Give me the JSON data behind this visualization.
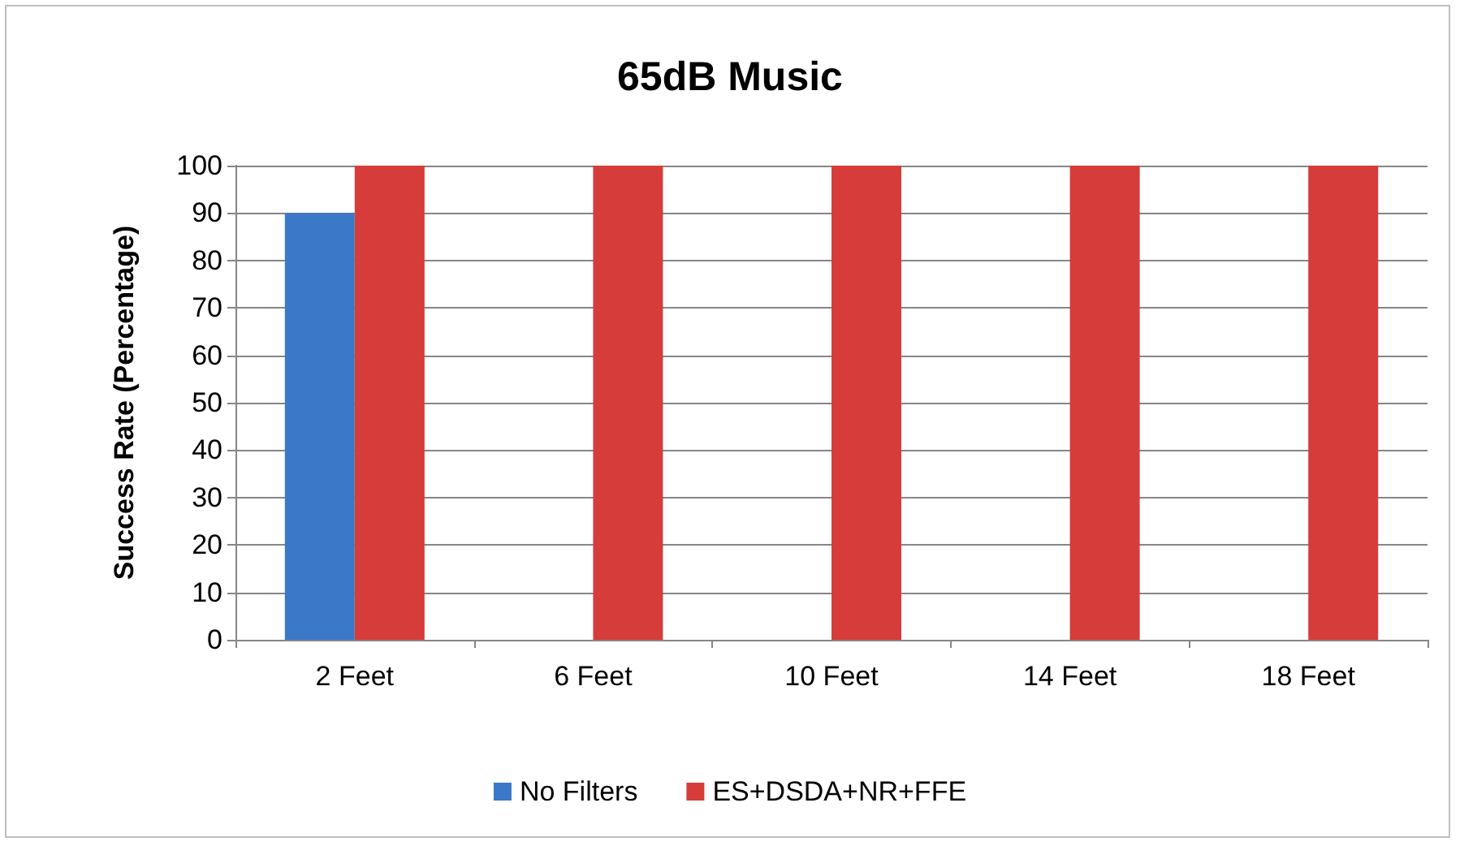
{
  "chart_data": {
    "type": "bar",
    "title": "65dB Music",
    "ylabel": "Success Rate (Percentage)",
    "categories": [
      "2 Feet",
      "6 Feet",
      "10 Feet",
      "14 Feet",
      "18 Feet"
    ],
    "series": [
      {
        "name": "No Filters",
        "color": "#3b78c8",
        "values": [
          90,
          0,
          0,
          0,
          0
        ]
      },
      {
        "name": "ES+DSDA+NR+FFE",
        "color": "#d63c3a",
        "values": [
          100,
          100,
          100,
          100,
          100
        ]
      }
    ],
    "ylim": [
      0,
      100
    ],
    "yticks": [
      0,
      10,
      20,
      30,
      40,
      50,
      60,
      70,
      80,
      90,
      100
    ],
    "grid": "y",
    "legend": "bottom"
  }
}
